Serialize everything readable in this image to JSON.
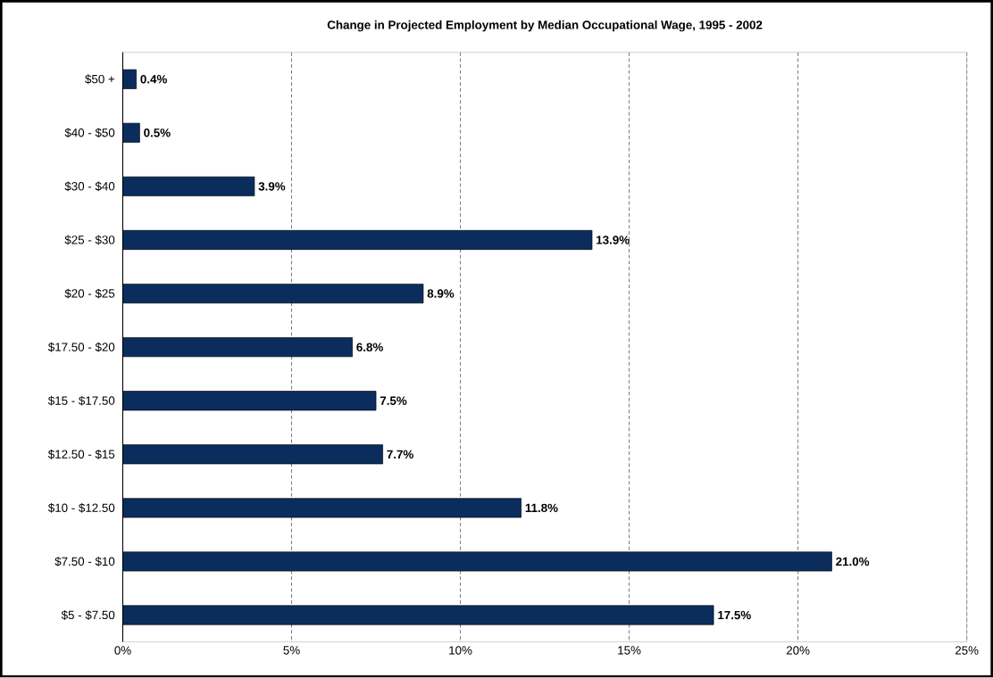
{
  "chart_data": {
    "type": "bar",
    "orientation": "horizontal",
    "title": "Change in Projected Employment by Median Occupational Wage, 1995 - 2002",
    "categories": [
      "$50 +",
      "$40 - $50",
      "$30 - $40",
      "$25 - $30",
      "$20 - $25",
      "$17.50 - $20",
      "$15 - $17.50",
      "$12.50 - $15",
      "$10 - $12.50",
      "$7.50 - $10",
      "$5 - $7.50"
    ],
    "values": [
      0.4,
      0.5,
      3.9,
      13.9,
      8.9,
      6.8,
      7.5,
      7.7,
      11.8,
      21.0,
      17.5
    ],
    "value_labels": [
      "0.4%",
      "0.5%",
      "3.9%",
      "13.9%",
      "8.9%",
      "6.8%",
      "7.5%",
      "7.7%",
      "11.8%",
      "21.0%",
      "17.5%"
    ],
    "color": "#0a2d5e",
    "xlim": [
      0,
      25
    ],
    "xticks": [
      {
        "value": 0,
        "label": "0%"
      },
      {
        "value": 5,
        "label": "5%"
      },
      {
        "value": 10,
        "label": "10%"
      },
      {
        "value": 15,
        "label": "15%"
      },
      {
        "value": 20,
        "label": "20%"
      },
      {
        "value": 25,
        "label": "25%"
      }
    ],
    "grid": "x"
  }
}
